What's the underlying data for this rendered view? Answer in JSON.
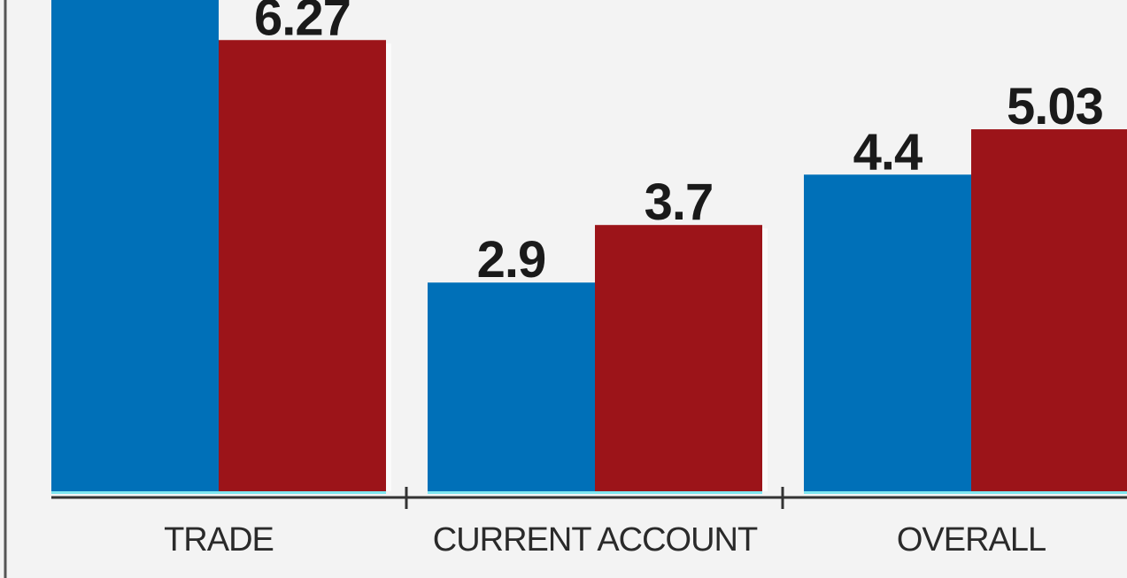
{
  "chart_data": {
    "type": "bar",
    "categories": [
      "TRADE",
      "CURRENT ACCOUNT",
      "OVERALL"
    ],
    "series": [
      {
        "values": [
          null,
          2.9,
          4.4
        ],
        "color": "#0070b8"
      },
      {
        "values": [
          6.27,
          3.7,
          5.03
        ],
        "color": "#9c1419"
      }
    ],
    "data_labels": [
      [
        "",
        "2.9",
        "4.4"
      ],
      [
        "6.27",
        "3.7",
        "5.03"
      ]
    ],
    "colors": {
      "background": "#f3f3f3",
      "axis": "#333333",
      "baseline_highlight": "#7ee6f0",
      "label": "#1a1a1a"
    },
    "grid": false,
    "legend": "none"
  }
}
